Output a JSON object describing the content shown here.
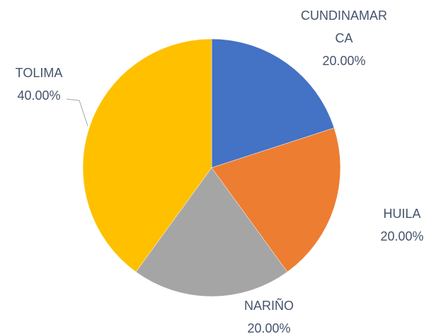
{
  "chart_data": {
    "type": "pie",
    "categories": [
      "CUNDINAMARCA",
      "HUILA",
      "NARIÑO",
      "TOLIMA"
    ],
    "values": [
      20,
      20,
      20,
      40
    ],
    "value_labels": [
      "20.00%",
      "20.00%",
      "20.00%",
      "40.00%"
    ],
    "colors": [
      "#4472c4",
      "#ed7d31",
      "#a5a5a5",
      "#ffc000"
    ]
  }
}
